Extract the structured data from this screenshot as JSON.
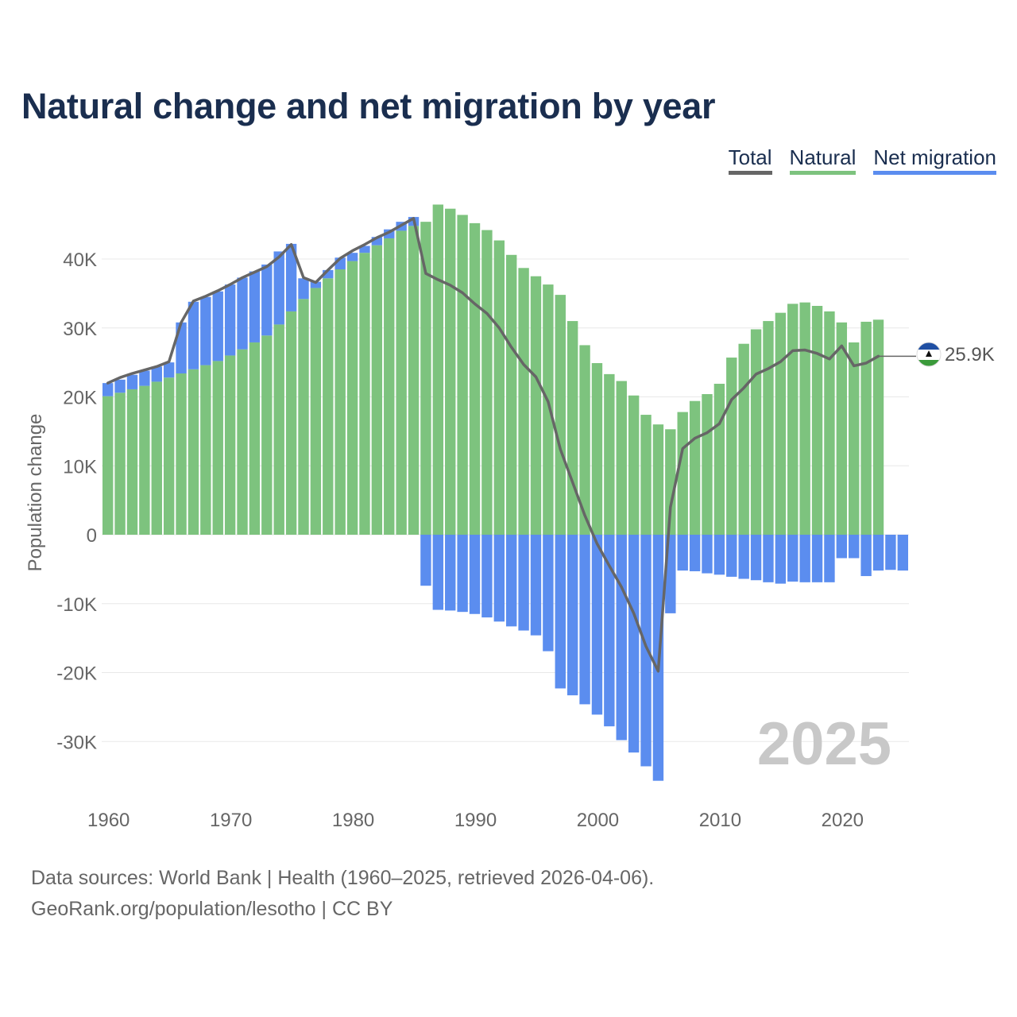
{
  "title": "Natural change and net migration by year",
  "legend": [
    {
      "label": "Total",
      "color": "#666666"
    },
    {
      "label": "Natural",
      "color": "#7dc37e"
    },
    {
      "label": "Net migration",
      "color": "#5b8def"
    }
  ],
  "year_watermark": "2025",
  "end_label": {
    "value_text": "25.9K",
    "flag_icon": "lesotho-flag-icon"
  },
  "footer": {
    "line1": "Data sources: World Bank | Health (1960–2025, retrieved 2026-04-06).",
    "line2": "GeoRank.org/population/lesotho | CC BY"
  },
  "colors": {
    "natural": "#7dc37e",
    "migration": "#5b8def",
    "total": "#666666",
    "grid": "#e8e8e8",
    "axis_text": "#666666",
    "watermark": "#c8c8c8"
  },
  "chart_data": {
    "type": "bar",
    "title": "Natural change and net migration by year",
    "xlabel": "",
    "ylabel": "Population change",
    "ylim": [
      -38000,
      52000
    ],
    "yticks": [
      40000,
      30000,
      20000,
      10000,
      0,
      -10000,
      -20000,
      -30000
    ],
    "ytick_labels": [
      "40K",
      "30K",
      "20K",
      "10K",
      "0",
      "-10K",
      "-20K",
      "-30K"
    ],
    "xticks": [
      1960,
      1970,
      1980,
      1990,
      2000,
      2010,
      2020
    ],
    "xlim": [
      1960,
      2025
    ],
    "series": [
      {
        "name": "Natural",
        "values": [
          20100,
          20600,
          21100,
          21600,
          22200,
          22800,
          23400,
          24000,
          24600,
          25200,
          26000,
          26900,
          27900,
          28900,
          30500,
          32400,
          34200,
          35800,
          37200,
          38500,
          39700,
          40900,
          42000,
          43000,
          44100,
          44800,
          45400,
          47900,
          47300,
          46400,
          45200,
          44200,
          42700,
          40600,
          38700,
          37500,
          36300,
          34800,
          31000,
          27500,
          24900,
          23300,
          22300,
          20200,
          17400,
          16000,
          15300,
          17800,
          19400,
          20400,
          21900,
          25700,
          27700,
          29800,
          31000,
          32200,
          33500,
          33700,
          33200,
          32400,
          30800,
          27900,
          30900,
          31200,
          0,
          0
        ]
      },
      {
        "name": "Net migration",
        "values": [
          1900,
          1900,
          2100,
          2200,
          2200,
          2200,
          7400,
          9800,
          9900,
          10100,
          10300,
          10400,
          10300,
          10300,
          10600,
          9800,
          3000,
          900,
          1200,
          1700,
          1200,
          1000,
          1200,
          1300,
          1300,
          1300,
          -7400,
          -10900,
          -11000,
          -11200,
          -11500,
          -12000,
          -12600,
          -13300,
          -13900,
          -14600,
          -16900,
          -22300,
          -23300,
          -24600,
          -26100,
          -27800,
          -29800,
          -31600,
          -33600,
          -35700,
          -11400,
          -5200,
          -5300,
          -5600,
          -5800,
          -6100,
          -6400,
          -6600,
          -6900,
          -7100,
          -6800,
          -6900,
          -6900,
          -6900,
          -3400,
          -3400,
          -6000,
          -5200,
          -5100,
          -5200
        ]
      },
      {
        "name": "Total",
        "values": [
          22000,
          22800,
          23400,
          23900,
          24400,
          25100,
          30800,
          33900,
          34600,
          35400,
          36300,
          37300,
          38100,
          38900,
          40300,
          42100,
          37300,
          36600,
          38400,
          40100,
          41200,
          42100,
          43100,
          43900,
          44900,
          45900,
          37900,
          37000,
          36200,
          35100,
          33500,
          32100,
          30000,
          27200,
          24700,
          22900,
          19300,
          12400,
          7600,
          2800,
          -1300,
          -4500,
          -7600,
          -11400,
          -16200,
          -19800,
          4000,
          12500,
          14000,
          14800,
          16100,
          19600,
          21300,
          23300,
          24100,
          25100,
          26700,
          26800,
          26300,
          25500,
          27400,
          24500,
          24900,
          25900
        ]
      }
    ]
  }
}
